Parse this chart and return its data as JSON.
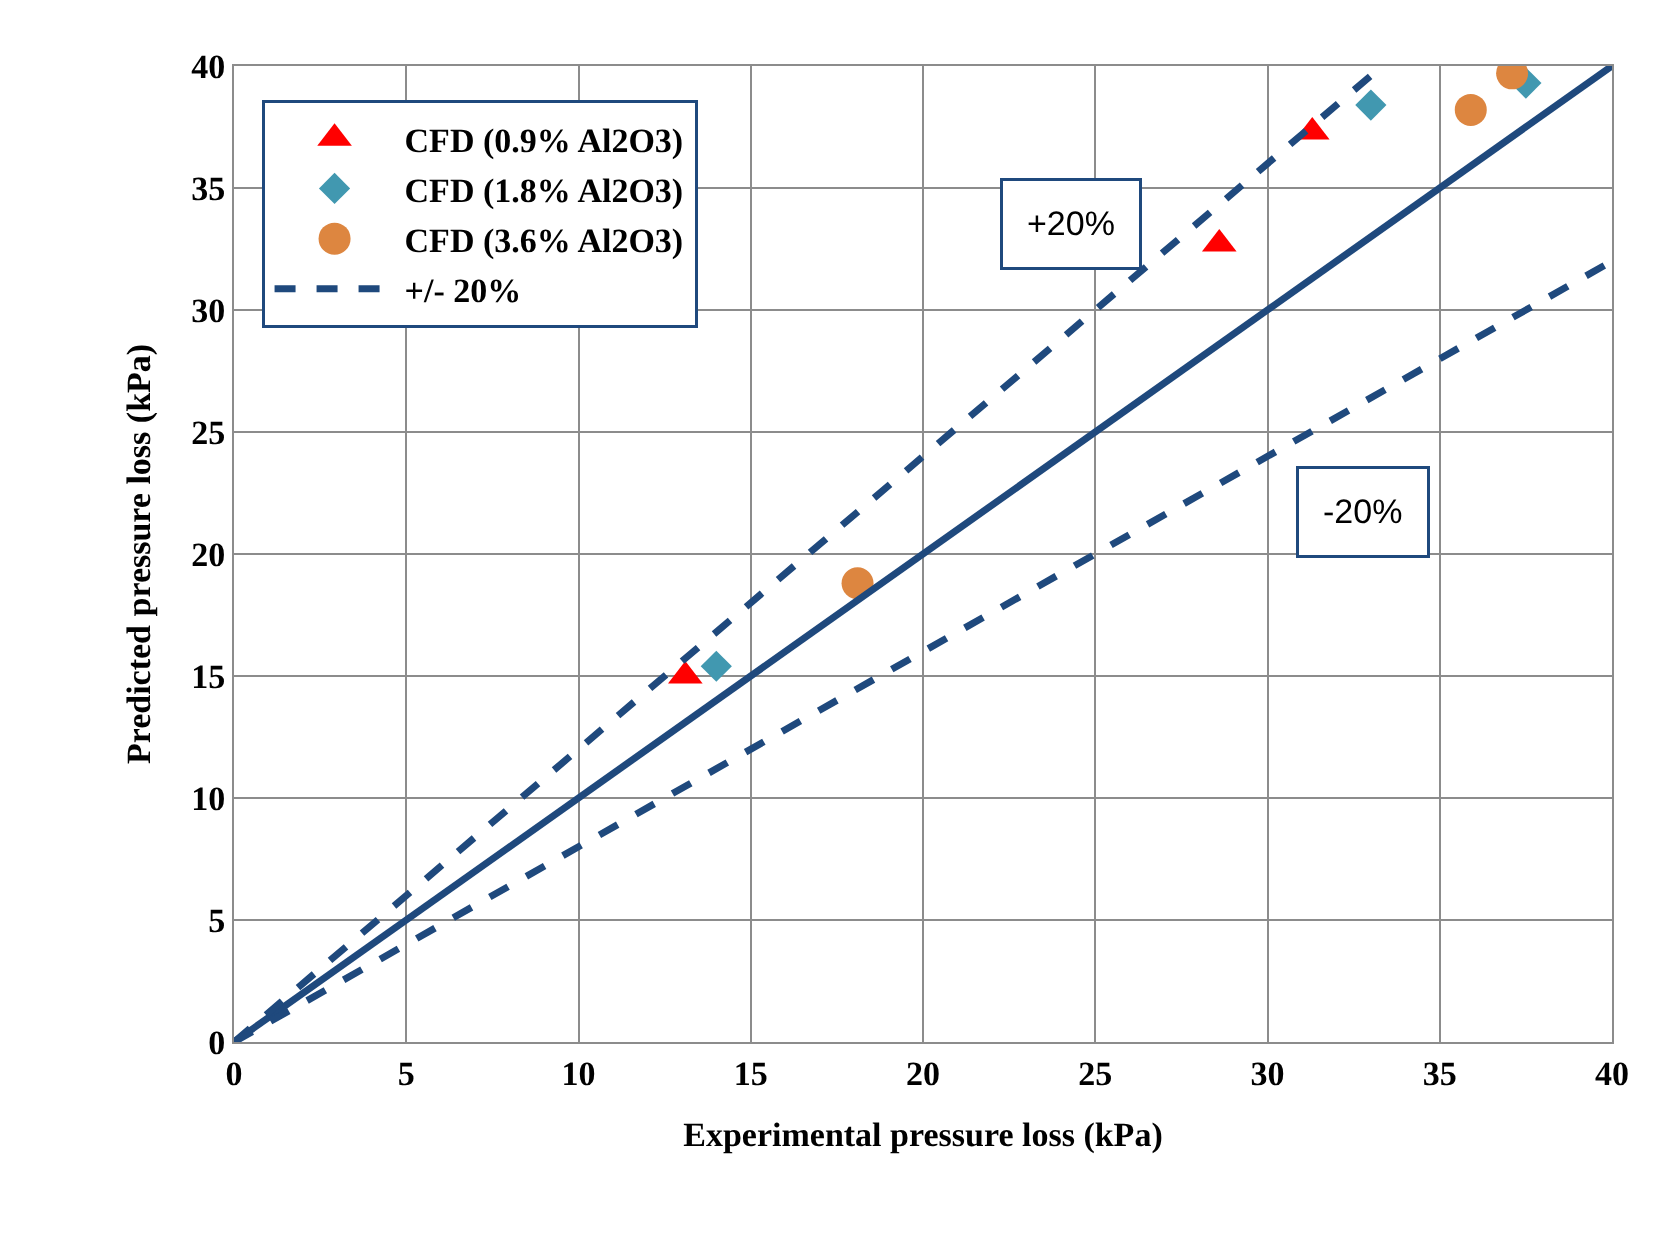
{
  "chart_data": {
    "type": "scatter",
    "xlabel": "Experimental pressure loss (kPa)",
    "ylabel": "Predicted pressure loss (kPa)",
    "xlim": [
      0,
      40
    ],
    "ylim": [
      0,
      40
    ],
    "xticks": [
      0,
      5,
      10,
      15,
      20,
      25,
      30,
      35,
      40
    ],
    "yticks": [
      0,
      5,
      10,
      15,
      20,
      25,
      30,
      35,
      40
    ],
    "grid": true,
    "legend": "top left",
    "series": [
      {
        "name": "CFD (0.9% Al2O3)",
        "color": "#ff0000",
        "marker": "triangle",
        "x": [
          13.1,
          28.6,
          31.3
        ],
        "values": [
          15.0,
          32.7,
          37.3
        ]
      },
      {
        "name": "CFD (1.8% Al2O3)",
        "color": "#4198b0",
        "marker": "diamond",
        "x": [
          14.0,
          33.0,
          37.5
        ],
        "values": [
          15.4,
          38.4,
          39.3
        ]
      },
      {
        "name": "CFD (3.6% Al2O3)",
        "color": "#dd8640",
        "marker": "circle",
        "x": [
          18.1,
          35.9,
          37.1
        ],
        "values": [
          18.8,
          38.2,
          39.7
        ]
      },
      {
        "type": "line",
        "color": "#1f497d",
        "marker": "none",
        "line_style": "solid",
        "x": [
          0,
          40
        ],
        "values": [
          0,
          40
        ]
      },
      {
        "name": "+/- 20%",
        "type": "line",
        "color": "#1f497d",
        "marker": "none",
        "line_style": "dashed",
        "x": [
          0,
          33
        ],
        "values": [
          0,
          39.6
        ]
      },
      {
        "type": "line",
        "color": "#1f497d",
        "marker": "none",
        "line_style": "dashed",
        "x": [
          0,
          40
        ],
        "values": [
          0,
          32
        ]
      }
    ],
    "annotations": [
      "+20%",
      "-20%"
    ]
  }
}
